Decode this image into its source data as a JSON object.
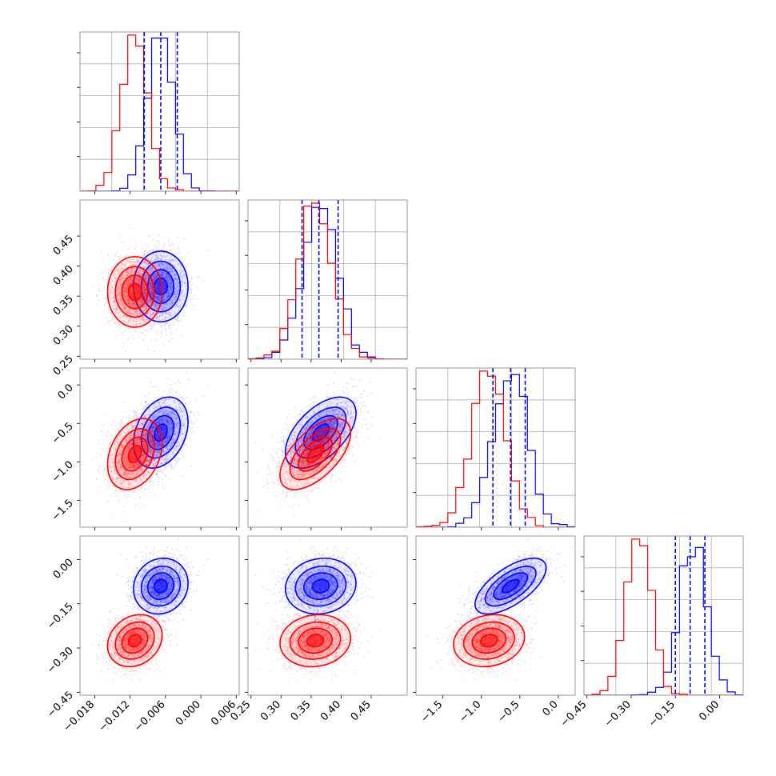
{
  "chart_data": {
    "type": "corner",
    "colors": {
      "series_a": "#0000ff",
      "series_b": "#ff0000",
      "grid": "#b0b0b0",
      "frame": "#808080"
    },
    "quantiles_series": "series_a",
    "grid": true,
    "series": [
      {
        "name": "",
        "color": "#0000ff",
        "mean": [
          -0.0068,
          0.366,
          -0.62,
          -0.09
        ],
        "sd": [
          0.0022,
          0.028,
          0.22,
          0.045
        ],
        "corr": [
          [
            1,
            0,
            0.3,
            0.1
          ],
          [
            0,
            1,
            0.55,
            0.1
          ],
          [
            0.3,
            0.55,
            1,
            0.65
          ],
          [
            0.1,
            0.1,
            0.65,
            1
          ]
        ]
      },
      {
        "name": "",
        "color": "#ff0000",
        "mean": [
          -0.0112,
          0.357,
          -0.9,
          -0.275
        ],
        "sd": [
          0.0022,
          0.028,
          0.22,
          0.042
        ],
        "corr": [
          [
            1,
            0,
            0.3,
            0.2
          ],
          [
            0,
            1,
            0.6,
            0.1
          ],
          [
            0.3,
            0.6,
            1,
            0.15
          ],
          [
            0.2,
            0.1,
            0.15,
            1
          ]
        ]
      }
    ],
    "quantile_lines": [
      [
        -0.0096,
        -0.0068,
        -0.004
      ],
      [
        0.335,
        0.363,
        0.395
      ],
      [
        -0.85,
        -0.62,
        -0.43
      ],
      [
        -0.15,
        -0.1,
        -0.05
      ]
    ],
    "axes": [
      {
        "range": [
          -0.0205,
          0.0065
        ],
        "ticks": [
          "-0.018",
          "-0.012",
          "-0.006",
          "0.000",
          "0.006"
        ],
        "tick_values": [
          -0.018,
          -0.012,
          -0.006,
          0.0,
          0.006
        ]
      },
      {
        "range": [
          0.245,
          0.51
        ],
        "ticks": [
          "0.25",
          "0.30",
          "0.35",
          "0.40",
          "0.45"
        ],
        "tick_values": [
          0.25,
          0.3,
          0.35,
          0.4,
          0.45
        ]
      },
      {
        "range": [
          -1.85,
          0.22
        ],
        "ticks": [
          "-1.5",
          "-1.0",
          "-0.5",
          "0.0"
        ],
        "tick_values": [
          -1.5,
          -1.0,
          -0.5,
          0.0
        ]
      },
      {
        "range": [
          -0.46,
          0.08
        ],
        "ticks": [
          "-0.45",
          "-0.30",
          "-0.15",
          "0.00"
        ],
        "tick_values": [
          -0.45,
          -0.3,
          -0.15,
          0.0
        ]
      }
    ],
    "xlabel": "",
    "ylabel": "",
    "title": ""
  }
}
